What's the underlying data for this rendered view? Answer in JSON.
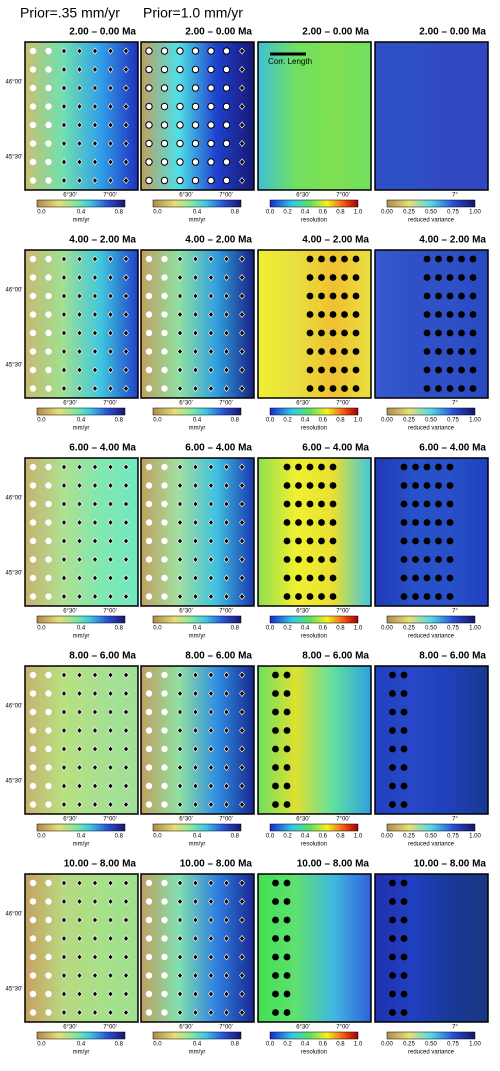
{
  "headers": [
    "Prior=.35 mm/yr",
    "Prior=1.0 mm/yr"
  ],
  "rows": [
    {
      "label": "2.00 – 0.00 Ma"
    },
    {
      "label": "4.00 – 2.00 Ma"
    },
    {
      "label": "6.00 – 4.00 Ma"
    },
    {
      "label": "8.00 – 6.00 Ma"
    },
    {
      "label": "10.00 – 8.00 Ma"
    }
  ],
  "corr_length": "Corr. Length",
  "lat_labels": [
    "46°00'",
    "45°30'"
  ],
  "lon_labels": [
    "6°30'",
    "7°00'",
    "7°"
  ],
  "colorbars": {
    "velocity": {
      "ticks": [
        "0.0",
        "0.4",
        "0.8"
      ],
      "label": "mm/yr"
    },
    "resolution": {
      "ticks": [
        "0.0",
        "0.2",
        "0.4",
        "0.6",
        "0.8",
        "1.0"
      ],
      "label": "resolution"
    },
    "variance": {
      "ticks": [
        "0.00",
        "0.25",
        "0.50",
        "0.75",
        "1.00"
      ],
      "label": "reduced variance"
    }
  }
}
